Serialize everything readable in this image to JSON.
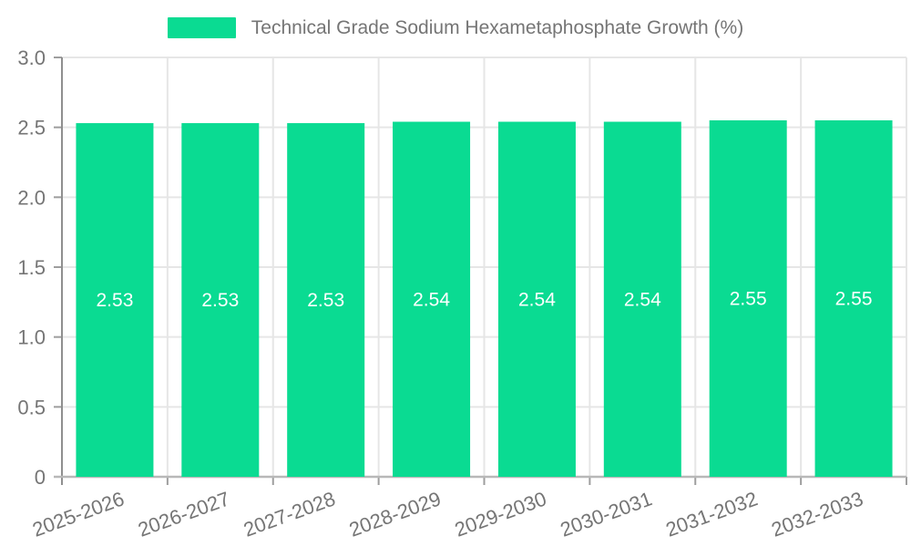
{
  "chart_data": {
    "type": "bar",
    "title": "Technical Grade Sodium Hexametaphosphate Growth (%)",
    "legend_position": "top-center",
    "categories": [
      "2025-2026",
      "2026-2027",
      "2027-2028",
      "2028-2029",
      "2029-2030",
      "2030-2031",
      "2031-2032",
      "2032-2033"
    ],
    "values": [
      2.53,
      2.53,
      2.53,
      2.54,
      2.54,
      2.54,
      2.55,
      2.55
    ],
    "value_labels": [
      "2.53",
      "2.53",
      "2.53",
      "2.54",
      "2.54",
      "2.54",
      "2.55",
      "2.55"
    ],
    "ylim": [
      0,
      3.0
    ],
    "yticks": [
      0,
      0.5,
      1,
      1.5,
      2,
      2.5,
      3
    ],
    "ytick_labels": [
      "0",
      "0.5",
      "1.0",
      "1.5",
      "2.0",
      "2.5",
      "3.0"
    ],
    "grid": true,
    "x_label_rotation_deg": -20,
    "colors": {
      "bar": "#0adb92",
      "bar_value_text": "#ffffff",
      "axis_text": "#757575",
      "grid_line": "#e6e6e6",
      "y_axis_line": "#8f8f8f",
      "x_axis_line": "#b8b8b8",
      "tick": "#9e9e9e",
      "background": "#ffffff"
    }
  }
}
